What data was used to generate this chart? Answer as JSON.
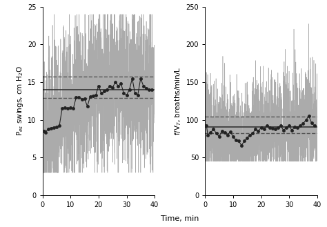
{
  "left_panel": {
    "ylabel": "P$_{es}$ swings, cm H$_2$O",
    "ylim": [
      0,
      25
    ],
    "yticks": [
      0,
      5,
      10,
      15,
      20,
      25
    ],
    "xlim": [
      0,
      40
    ],
    "xticks": [
      0,
      10,
      20,
      30,
      40
    ],
    "mean_line": 14.0,
    "dashed_upper": 15.7,
    "dashed_lower": 12.9,
    "dot_times": [
      0.5,
      1,
      2,
      3,
      4,
      5,
      6,
      7,
      8,
      9,
      10,
      11,
      12,
      13,
      14,
      15,
      16,
      17,
      18,
      19,
      20,
      21,
      22,
      23,
      24,
      25,
      26,
      27,
      28,
      29,
      30,
      31,
      32,
      33,
      34,
      35,
      36,
      37,
      38,
      39
    ],
    "dot_values": [
      8.5,
      8.3,
      8.8,
      8.9,
      9.0,
      9.1,
      9.2,
      11.5,
      11.6,
      11.5,
      11.6,
      11.5,
      13.0,
      13.0,
      12.7,
      12.8,
      11.8,
      13.1,
      13.2,
      13.3,
      14.5,
      13.5,
      13.8,
      14.0,
      14.5,
      14.3,
      15.0,
      14.5,
      14.8,
      13.5,
      13.3,
      14.0,
      15.5,
      13.5,
      13.3,
      15.5,
      14.5,
      14.2,
      14.0,
      14.0
    ],
    "noise_seed": 42,
    "noise_amplitude": 5.0,
    "noise_upper_clip": 24,
    "noise_lower_clip": 3,
    "noise_points": 2000
  },
  "right_panel": {
    "ylabel": "f/V$_T$, breaths/min/L",
    "ylim": [
      0,
      250
    ],
    "yticks": [
      0,
      50,
      100,
      150,
      200,
      250
    ],
    "xlim": [
      0,
      40
    ],
    "xticks": [
      0,
      10,
      20,
      30,
      40
    ],
    "mean_line": 91.0,
    "dashed_upper": 104.0,
    "dashed_lower": 82.0,
    "dot_times": [
      0.5,
      1,
      2,
      3,
      4,
      5,
      6,
      7,
      8,
      9,
      10,
      11,
      12,
      13,
      14,
      15,
      16,
      17,
      18,
      19,
      20,
      21,
      22,
      23,
      24,
      25,
      26,
      27,
      28,
      29,
      30,
      31,
      32,
      33,
      34,
      35,
      36,
      37,
      38,
      39
    ],
    "dot_values": [
      92,
      80,
      83,
      88,
      82,
      78,
      85,
      83,
      80,
      84,
      78,
      73,
      72,
      66,
      72,
      76,
      80,
      82,
      88,
      85,
      90,
      88,
      92,
      90,
      89,
      88,
      90,
      92,
      86,
      90,
      92,
      86,
      91,
      90,
      92,
      95,
      100,
      105,
      96,
      92
    ],
    "noise_seed": 7,
    "noise_amplitude": 35.0,
    "noise_upper_clip": 240,
    "noise_lower_clip": 45,
    "noise_points": 2000
  },
  "xlabel": "Time, min",
  "line_color": "#888888",
  "dot_color": "#222222",
  "mean_color": "#333333",
  "dashed_color": "#555555",
  "background_color": "#ffffff"
}
